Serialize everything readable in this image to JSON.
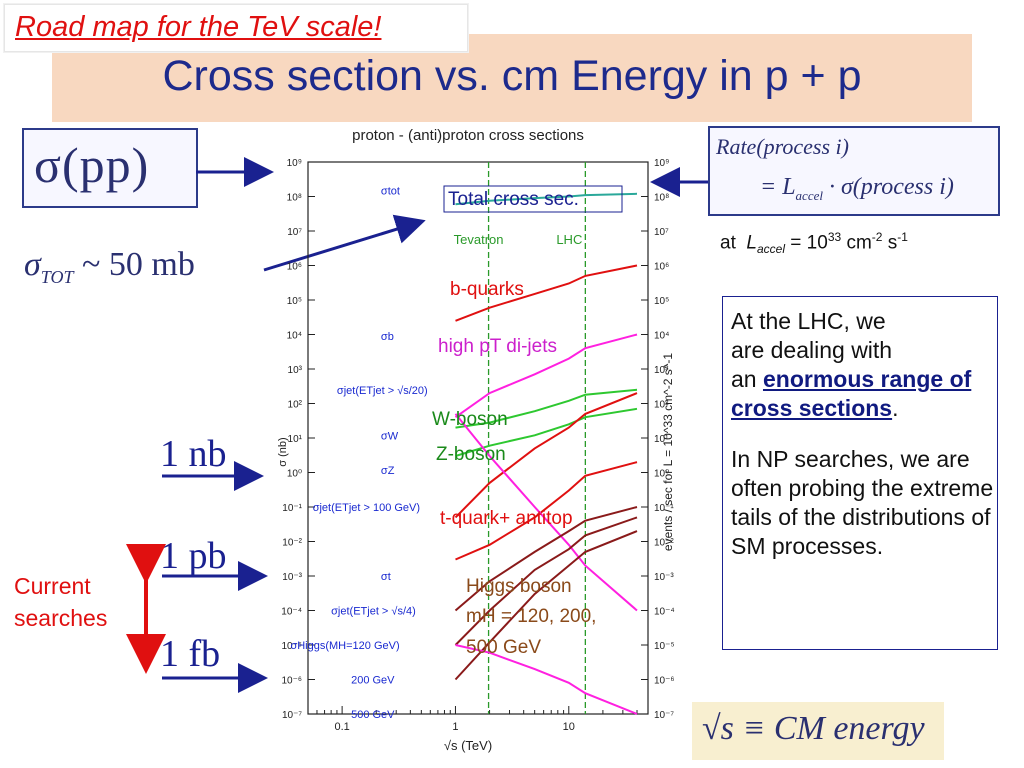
{
  "header": {
    "tag": "Road map for the TeV scale!",
    "title": "Cross section vs. cm Energy in p + p"
  },
  "left": {
    "sigma_pp": "σ(pp)",
    "sigma_tot_main": "σ",
    "sigma_tot_sub": "TOT",
    "sigma_tot_value": " ~ 50 mb",
    "one_nb": "1 nb",
    "one_pb": "1 pb",
    "one_fb": "1 fb",
    "current_line1": "Current",
    "current_line2": "searches"
  },
  "right": {
    "rate_line1": "Rate(process i)",
    "rate_line2": "= L",
    "rate_sub": "accel",
    "rate_line2b": " · σ(process i)",
    "lumi_at": "at",
    "lumi_L": "L",
    "lumi_sub": "accel",
    "lumi_eq": " = 10",
    "lumi_exp": "33",
    "lumi_cm": " cm",
    "lumi_cm_exp": "-2",
    "lumi_s": " s",
    "lumi_s_exp": "-1",
    "info_1": "At the LHC, we",
    "info_2": "are dealing with",
    "info_3": "an ",
    "info_bold": "enormous range of cross sections",
    "info_dot": ".",
    "info_4": "In NP searches, we are often probing the extreme tails of the distributions of SM processes.",
    "sqrt_s": "√s ≡ CM  energy"
  },
  "colors": {
    "accent_red": "#e01010",
    "navy": "#1a2190",
    "title_band": "#f8d8c0"
  },
  "chart_data": {
    "type": "line",
    "title": "proton - (anti)proton cross sections",
    "xlabel": "√s (TeV)",
    "ylabel": "σ (nb)",
    "ylabel_right": "events / sec for L = 10^33 cm^-2 s^-1",
    "x_scale": "log",
    "y_scale": "log",
    "xlim": [
      0.05,
      50
    ],
    "ylim": [
      1e-07,
      1000000000.0
    ],
    "x_ticks": [
      "0.1",
      "1",
      "10"
    ],
    "y_ticks_left": [
      "10⁹",
      "10⁸",
      "10⁷",
      "10⁶",
      "10⁵",
      "10⁴",
      "10³",
      "10²",
      "10¹",
      "10⁰",
      "10⁻¹",
      "10⁻²",
      "10⁻³",
      "10⁻⁴",
      "10⁻⁵",
      "10⁻⁶",
      "10⁻⁷"
    ],
    "y_ticks_right": [
      "10⁹",
      "10⁸",
      "10⁷",
      "10⁶",
      "10⁵",
      "10⁴",
      "10³",
      "10²",
      "10¹",
      "10⁰",
      "10⁻¹",
      "10⁻²",
      "10⁻³",
      "10⁻⁴",
      "10⁻⁵",
      "10⁻⁶",
      "10⁻⁷"
    ],
    "vlines": [
      {
        "label": "Tevatron",
        "x": 1.96
      },
      {
        "label": "LHC",
        "x": 14
      }
    ],
    "curve_labels": [
      {
        "text": "σtot",
        "x": 0.22,
        "y": 150000000.0
      },
      {
        "text": "σb",
        "x": 0.22,
        "y": 9000.0
      },
      {
        "text": "σjet(ETjet > √s/20)",
        "x": 0.09,
        "y": 250
      },
      {
        "text": "σW",
        "x": 0.22,
        "y": 12
      },
      {
        "text": "σZ",
        "x": 0.22,
        "y": 1.2
      },
      {
        "text": "σjet(ETjet > 100 GeV)",
        "x": 0.055,
        "y": 0.1
      },
      {
        "text": "σt",
        "x": 0.22,
        "y": 0.001
      },
      {
        "text": "σjet(ETjet > √s/4)",
        "x": 0.08,
        "y": 0.0001
      },
      {
        "text": "σHiggs(MH=120 GeV)",
        "x": 0.035,
        "y": 1e-05
      },
      {
        "text": "200 GeV",
        "x": 0.12,
        "y": 1e-06
      },
      {
        "text": "500 GeV",
        "x": 0.12,
        "y": 1e-07
      }
    ],
    "overlay_labels": [
      {
        "text": "Total cross sec."
      },
      {
        "text": "b-quarks"
      },
      {
        "text": "high pT di-jets"
      },
      {
        "text": "W-boson"
      },
      {
        "text": "Z-boson"
      },
      {
        "text": "t-quark+ antitop"
      },
      {
        "text": "Higgs boson"
      },
      {
        "text": "mH = 120, 200,"
      },
      {
        "text": "500 GeV"
      }
    ],
    "series": [
      {
        "name": "σtot",
        "color": "#2aa89a",
        "x": [
          1,
          2,
          5,
          10,
          14,
          40
        ],
        "y": [
          60000000.0,
          75000000.0,
          90000000.0,
          100000000.0,
          110000000.0,
          120000000.0
        ]
      },
      {
        "name": "σb",
        "color": "#e01010",
        "x": [
          1,
          2,
          5,
          10,
          14,
          40
        ],
        "y": [
          25000.0,
          60000.0,
          150000.0,
          300000.0,
          500000.0,
          1000000.0
        ]
      },
      {
        "name": "σjet(ETjet > √s/20)",
        "color": "#ff20e0",
        "x": [
          1,
          2,
          5,
          10,
          14,
          40
        ],
        "y": [
          40,
          200,
          700,
          2000,
          4000,
          10000.0
        ]
      },
      {
        "name": "σW",
        "color": "#2ec830",
        "x": [
          1,
          2,
          5,
          10,
          14,
          40
        ],
        "y": [
          20,
          28,
          60,
          120,
          180,
          250
        ]
      },
      {
        "name": "σZ",
        "color": "#2ec830",
        "x": [
          1,
          2,
          5,
          10,
          14,
          40
        ],
        "y": [
          3,
          6,
          12,
          25,
          40,
          70
        ]
      },
      {
        "name": "σjet(ETjet > 100 GeV)",
        "color": "#e01010",
        "x": [
          1,
          2,
          5,
          10,
          14,
          40
        ],
        "y": [
          0.05,
          0.5,
          5,
          20,
          50,
          200
        ]
      },
      {
        "name": "σt",
        "color": "#e01010",
        "x": [
          1,
          2,
          5,
          10,
          14,
          40
        ],
        "y": [
          0.003,
          0.008,
          0.05,
          0.3,
          0.8,
          2
        ]
      },
      {
        "name": "σjet(ETjet > √s/4)",
        "color": "#ff20e0",
        "x": [
          1,
          2,
          5,
          10,
          14,
          40
        ],
        "y": [
          50,
          3,
          0.1,
          0.008,
          0.002,
          0.0001
        ]
      },
      {
        "name": "σHiggs(MH=120 GeV)",
        "color": "#8a1a1a",
        "x": [
          1,
          2,
          5,
          10,
          14,
          40
        ],
        "y": [
          0.0001,
          0.0007,
          0.005,
          0.02,
          0.04,
          0.1
        ]
      },
      {
        "name": "200 GeV",
        "color": "#8a1a1a",
        "x": [
          1,
          2,
          5,
          10,
          14,
          40
        ],
        "y": [
          1e-05,
          0.0001,
          0.0015,
          0.006,
          0.015,
          0.05
        ]
      },
      {
        "name": "500 GeV",
        "color": "#8a1a1a",
        "x": [
          1,
          2,
          5,
          10,
          14,
          40
        ],
        "y": [
          1e-06,
          1.2e-05,
          0.0003,
          0.002,
          0.005,
          0.02
        ]
      },
      {
        "name": "high pT tail",
        "color": "#ff20e0",
        "x": [
          1,
          2,
          5,
          10,
          14,
          40
        ],
        "y": [
          1e-05,
          6e-06,
          2e-06,
          8e-07,
          4e-07,
          1e-07
        ]
      }
    ]
  }
}
